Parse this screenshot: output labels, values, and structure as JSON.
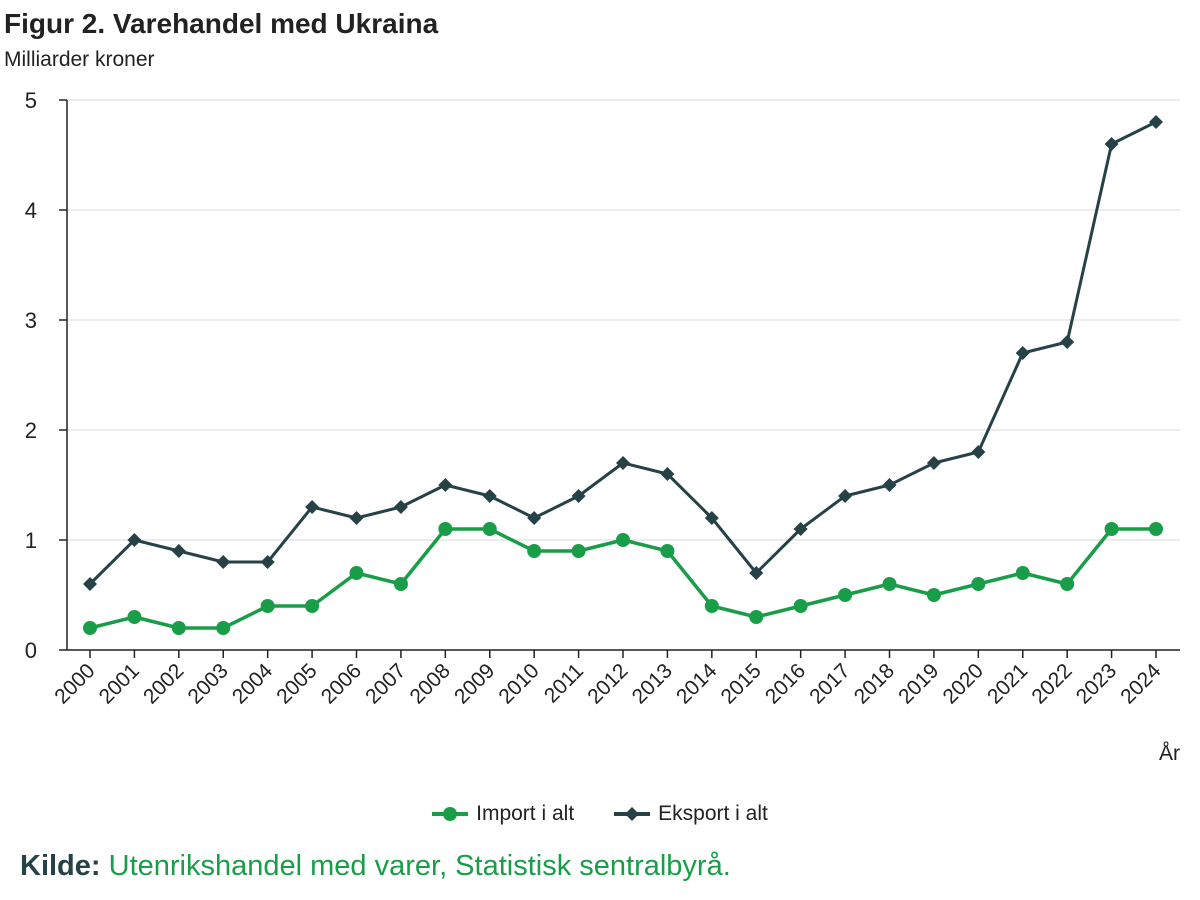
{
  "header": {
    "title": "Figur 2. Varehandel med Ukraina",
    "subtitle": "Milliarder kroner"
  },
  "source": {
    "label": "Kilde:",
    "text": "Utenrikshandel med varer, Statistisk sentralbyrå."
  },
  "chart_data": {
    "type": "line",
    "title": "Figur 2. Varehandel med Ukraina",
    "ylabel": "Milliarder kroner",
    "xlabel": "År",
    "ylim": [
      0,
      5
    ],
    "yticks": [
      0,
      1,
      2,
      3,
      4,
      5
    ],
    "grid": true,
    "legend_position": "bottom",
    "categories": [
      "2000",
      "2001",
      "2002",
      "2003",
      "2004",
      "2005",
      "2006",
      "2007",
      "2008",
      "2009",
      "2010",
      "2011",
      "2012",
      "2013",
      "2014",
      "2015",
      "2016",
      "2017",
      "2018",
      "2019",
      "2020",
      "2021",
      "2022",
      "2023",
      "2024"
    ],
    "series": [
      {
        "name": "Import i alt",
        "color": "#1a9d49",
        "marker": "circle",
        "values": [
          0.2,
          0.3,
          0.2,
          0.2,
          0.4,
          0.4,
          0.7,
          0.6,
          1.1,
          1.1,
          0.9,
          0.9,
          1.0,
          0.9,
          0.4,
          0.3,
          0.4,
          0.5,
          0.6,
          0.5,
          0.6,
          0.7,
          0.6,
          1.1,
          1.1
        ]
      },
      {
        "name": "Eksport i alt",
        "color": "#274247",
        "marker": "diamond",
        "values": [
          0.6,
          1.0,
          0.9,
          0.8,
          0.8,
          1.3,
          1.2,
          1.3,
          1.5,
          1.4,
          1.2,
          1.4,
          1.7,
          1.6,
          1.2,
          0.7,
          1.1,
          1.4,
          1.5,
          1.7,
          1.8,
          2.7,
          2.8,
          4.6,
          4.8
        ]
      }
    ]
  }
}
